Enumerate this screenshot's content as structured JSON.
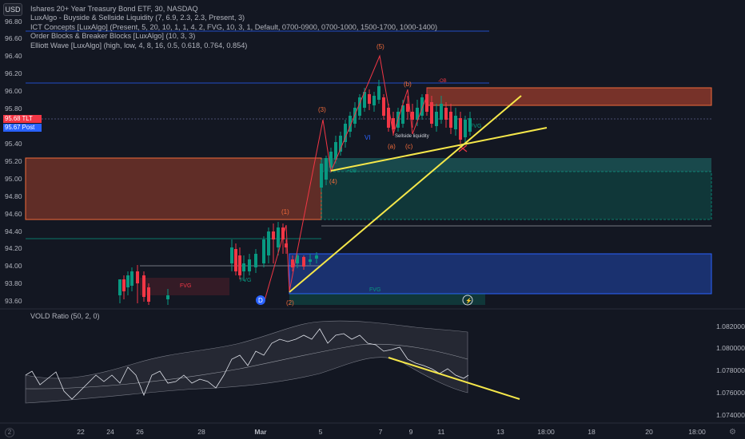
{
  "currency_badge": "USD",
  "legend": [
    "Ishares 20+ Year Treasury Bond ETF, 30, NASDAQ",
    "LuxAlgo - Buyside & Sellside Liquidity (7, 6.9, 2.3, 2.3, Present, 3)",
    "ICT Concepts [LuxAlgo] (Present, 5, 20, 10, 1, 1, 4, 2, FVG, 10, 3, 1, Default, 0700-0900, 0700-1000, 1500-1700, 1000-1400)",
    "Order Blocks & Breaker Blocks [LuxAlgo] (10, 3, 3)",
    "Elliott Wave [LuxAlgo] (high, low, 4, 8, 16, 0.5, 0.618, 0.764, 0.854)"
  ],
  "price_axis": [
    "96.80",
    "96.60",
    "96.40",
    "96.20",
    "96.00",
    "95.80",
    "95.40",
    "95.20",
    "95.00",
    "94.80",
    "94.60",
    "94.40",
    "94.20",
    "94.00",
    "93.80",
    "93.60"
  ],
  "price_tags": [
    {
      "value": "95.68",
      "suffix": "TLT",
      "color": "#f23645"
    },
    {
      "value": "95.67",
      "suffix": "Post",
      "color": "#2962ff"
    }
  ],
  "time_axis": [
    "22",
    "24",
    "26",
    "28",
    "Mar",
    "5",
    "7",
    "9",
    "11",
    "13",
    "18:00",
    "18",
    "20",
    "18:00"
  ],
  "indicator": {
    "title": "VOLD Ratio (50, 2, 0)",
    "axis": [
      "1.082000",
      "1.080000",
      "1.078000",
      "1.076000",
      "1.074000"
    ]
  },
  "wave_labels": [
    "(1)",
    "(2)",
    "(3)",
    "(4)",
    "(5)",
    "(a)",
    "(b)",
    "(c)",
    "VI"
  ],
  "zone_labels": [
    "FVG",
    "FVG",
    "FVG",
    "FVG",
    "Sellside liquidity",
    "-OB",
    "+OB"
  ],
  "colors": {
    "up": "#089981",
    "down": "#f23645",
    "trendline": "#f5e74a",
    "bg": "#131722"
  }
}
